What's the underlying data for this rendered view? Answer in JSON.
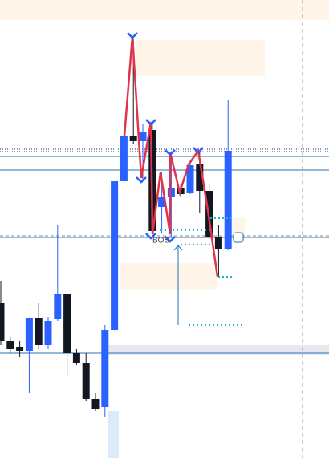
{
  "chart_data": {
    "type": "candlestick",
    "categories": [
      null,
      null,
      null,
      null,
      null,
      null,
      null,
      null,
      null,
      null,
      null,
      null,
      null,
      null,
      null,
      null,
      null,
      null,
      null,
      null,
      null,
      null,
      null,
      null,
      null
    ],
    "open": [
      193,
      146,
      139,
      134,
      175,
      141,
      173,
      205,
      131,
      119,
      73,
      63,
      160,
      345,
      401,
      395,
      409,
      313,
      325,
      336,
      331,
      367,
      333,
      275,
      261
    ],
    "high": [
      221,
      151,
      146,
      175,
      193,
      176,
      291,
      205,
      136,
      131,
      81,
      166,
      345,
      406,
      523,
      416,
      416,
      356,
      376,
      341,
      369,
      381,
      343,
      291,
      446
    ],
    "low": [
      141,
      131,
      126,
      81,
      136,
      136,
      171,
      101,
      116,
      71,
      59,
      51,
      160,
      343,
      391,
      346,
      279,
      281,
      276,
      326,
      329,
      306,
      273,
      226,
      259
    ],
    "close": [
      146,
      136,
      133,
      175,
      141,
      171,
      205,
      131,
      119,
      73,
      61,
      159,
      345,
      401,
      395,
      407,
      283,
      325,
      337,
      329,
      365,
      333,
      275,
      261,
      383
    ],
    "up_color": "#2962ff",
    "down_color": "#131722",
    "ylim": [
      0,
      571
    ],
    "annotation": "BOS"
  }
}
